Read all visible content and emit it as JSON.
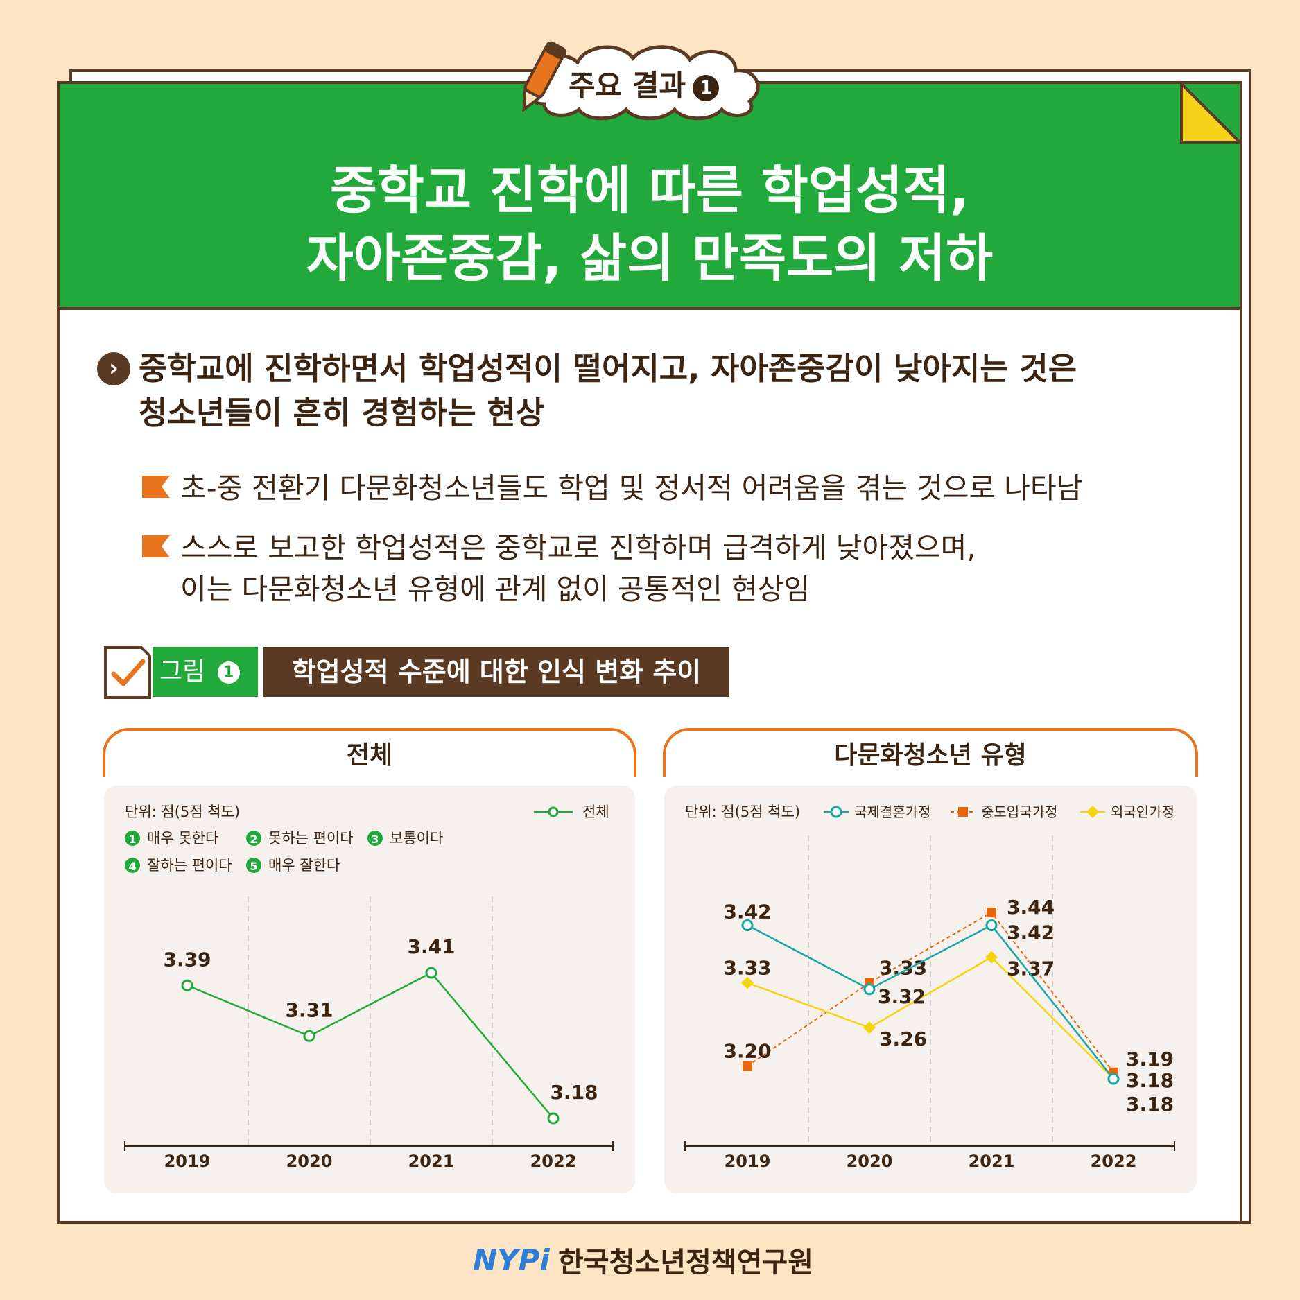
{
  "badge": {
    "label": "주요 결과",
    "num": "1"
  },
  "title": {
    "line1": "중학교 진학에 따른 학업성적,",
    "line2": "자아존중감, 삶의 만족도의 저하"
  },
  "main_point": {
    "line1": "중학교에 진학하면서 학업성적이 떨어지고, 자아존중감이 낮아지는 것은",
    "line2": "청소년들이 흔히 경험하는 현상"
  },
  "sub_points": [
    {
      "line1": "초-중 전환기 다문화청소년들도 학업 및 정서적 어려움을 겪는 것으로 나타남",
      "line2": ""
    },
    {
      "line1": "스스로 보고한 학업성적은 중학교로 진학하며 급격하게 낮아졌으며,",
      "line2": "이는 다문화청소년 유형에 관계 없이 공통적인 현상임"
    }
  ],
  "figure": {
    "label": "그림",
    "num": "1",
    "title": "학업성적 수준에 대한 인식 변화 추이"
  },
  "scale_legend": [
    {
      "num": "1",
      "text": "매우 못한다"
    },
    {
      "num": "2",
      "text": "못하는 편이다"
    },
    {
      "num": "3",
      "text": "보통이다"
    },
    {
      "num": "4",
      "text": "잘하는 편이다"
    },
    {
      "num": "5",
      "text": "매우 잘한다"
    }
  ],
  "colors": {
    "green": "#21a93b",
    "brown": "#5a3a22",
    "teal": "#1aa6a4",
    "orange": "#e8650f",
    "yellow": "#f5d40f",
    "panel_bg": "#f6f1ec",
    "page_bg": "#fde4c4"
  },
  "chart_data": [
    {
      "type": "line",
      "title": "전체",
      "unit": "단위: 점(5점 척도)",
      "x": [
        "2019",
        "2020",
        "2021",
        "2022"
      ],
      "series": [
        {
          "name": "전체",
          "values": [
            3.39,
            3.31,
            3.41,
            3.18
          ],
          "labels": [
            "3.39",
            "3.31",
            "3.41",
            "3.18"
          ]
        }
      ],
      "legend": "top-right",
      "grid": "vertical dashed"
    },
    {
      "type": "line",
      "title": "다문화청소년 유형",
      "unit": "단위: 점(5점 척도)",
      "x": [
        "2019",
        "2020",
        "2021",
        "2022"
      ],
      "series": [
        {
          "name": "국제결혼가정",
          "values": [
            3.42,
            3.32,
            3.42,
            3.18
          ],
          "labels": [
            "3.42",
            "3.32",
            "3.42",
            "3.18"
          ]
        },
        {
          "name": "중도입국가정",
          "values": [
            3.2,
            3.33,
            3.44,
            3.19
          ],
          "labels": [
            "3.20",
            "3.33",
            "3.44",
            "3.19"
          ]
        },
        {
          "name": "외국인가정",
          "values": [
            3.33,
            3.26,
            3.37,
            3.18
          ],
          "labels": [
            "3.33",
            "3.26",
            "3.37",
            "3.18"
          ]
        }
      ],
      "legend": "top-right",
      "grid": "vertical dashed"
    }
  ],
  "footer": {
    "org": "한국청소년정책연구원",
    "logo": "NYPi"
  }
}
